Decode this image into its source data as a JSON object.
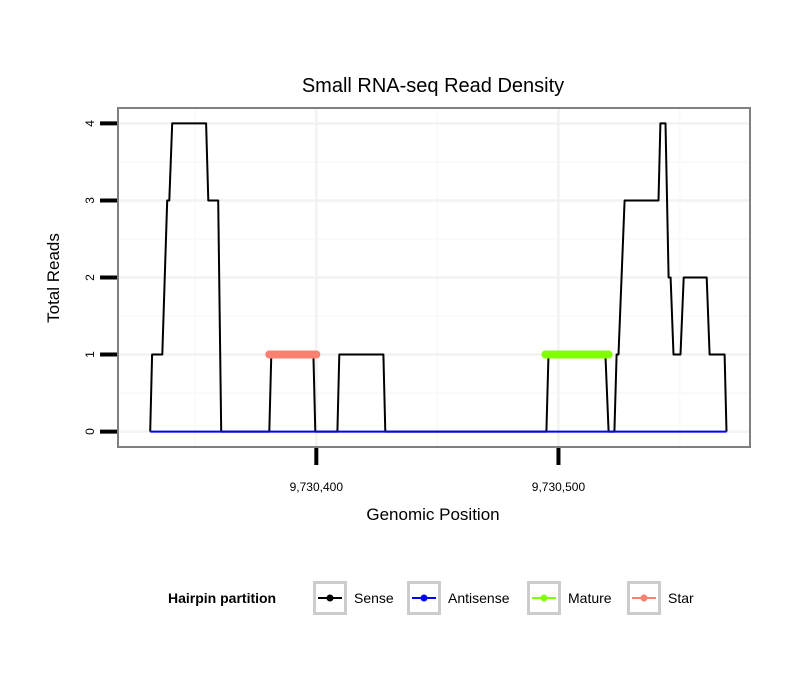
{
  "chart_data": {
    "type": "line",
    "title": "Small RNA-seq Read Density",
    "xlabel": "Genomic Position",
    "ylabel": "Total Reads",
    "xlim": [
      9730318.1,
      9730579.1
    ],
    "ylim": [
      -0.2,
      4.2
    ],
    "x_ticks": [
      9730400,
      9730500
    ],
    "x_tick_labels": [
      "9,730,400",
      "9,730,500"
    ],
    "y_ticks": [
      0,
      1,
      2,
      3,
      4
    ],
    "y_tick_labels": [
      "0",
      "1",
      "2",
      "3",
      "4"
    ],
    "grid": true,
    "legend": {
      "title": "Hairpin partition",
      "placement": "bottom",
      "entries": [
        {
          "label": "Sense",
          "color": "#000000"
        },
        {
          "label": "Antisense",
          "color": "#0000ff"
        },
        {
          "label": "Mature",
          "color": "#7fff00"
        },
        {
          "label": "Star",
          "color": "#fa8072"
        }
      ]
    },
    "series": [
      {
        "name": "Sense",
        "color": "#000000",
        "points": [
          [
            9730331.4,
            0
          ],
          [
            9730332.2,
            1
          ],
          [
            9730336.4,
            1
          ],
          [
            9730338.4,
            3
          ],
          [
            9730339.3,
            3
          ],
          [
            9730340.5,
            4
          ],
          [
            9730354.5,
            4
          ],
          [
            9730355.4,
            3
          ],
          [
            9730359.5,
            3
          ],
          [
            9730360.7,
            0
          ],
          [
            9730380.6,
            0
          ],
          [
            9730381.4,
            1
          ],
          [
            9730398.8,
            1
          ],
          [
            9730399.6,
            0
          ],
          [
            9730408.7,
            0
          ],
          [
            9730409.5,
            1
          ],
          [
            9730427.7,
            1
          ],
          [
            9730428.5,
            0
          ],
          [
            9730495.0,
            0
          ],
          [
            9730495.9,
            1
          ],
          [
            9730519.4,
            1
          ],
          [
            9730520.7,
            0
          ],
          [
            9730523.1,
            0
          ],
          [
            9730524.0,
            1
          ],
          [
            9730524.8,
            1
          ],
          [
            9730527.3,
            3
          ],
          [
            9730541.3,
            3
          ],
          [
            9730542.1,
            4
          ],
          [
            9730544.2,
            4
          ],
          [
            9730545.5,
            2
          ],
          [
            9730546.3,
            2
          ],
          [
            9730547.5,
            1
          ],
          [
            9730550.4,
            1
          ],
          [
            9730551.7,
            2
          ],
          [
            9730561.2,
            2
          ],
          [
            9730562.4,
            1
          ],
          [
            9730568.6,
            1
          ],
          [
            9730569.4,
            0
          ]
        ]
      },
      {
        "name": "Antisense",
        "color": "#0000ff",
        "points": [
          [
            9730331.4,
            0
          ],
          [
            9730569.4,
            0
          ]
        ]
      },
      {
        "name": "Mature",
        "color": "#7fff00",
        "points": [
          [
            9730494.6,
            1
          ],
          [
            9730520.7,
            1
          ]
        ]
      },
      {
        "name": "Star",
        "color": "#fa8072",
        "points": [
          [
            9730380.6,
            1
          ],
          [
            9730400.0,
            1
          ]
        ]
      }
    ]
  }
}
